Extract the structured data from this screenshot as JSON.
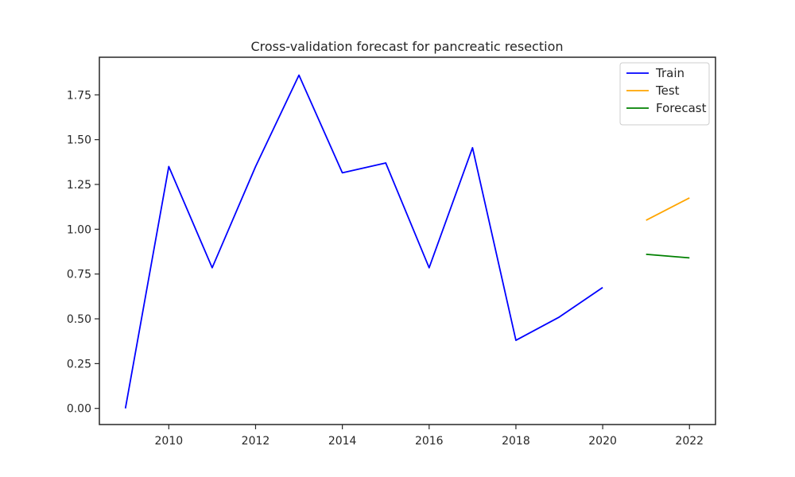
{
  "chart_data": {
    "type": "line",
    "title": "Cross-validation forecast for pancreatic resection",
    "xlabel": "",
    "ylabel": "",
    "xlim": [
      2008.4,
      2022.6
    ],
    "ylim": [
      -0.09,
      1.96
    ],
    "x_ticks": [
      2010,
      2012,
      2014,
      2016,
      2018,
      2020,
      2022
    ],
    "y_ticks": [
      0.0,
      0.25,
      0.5,
      0.75,
      1.0,
      1.25,
      1.5,
      1.75
    ],
    "x_tick_labels": [
      "2010",
      "2012",
      "2014",
      "2016",
      "2018",
      "2020",
      "2022"
    ],
    "y_tick_labels": [
      "0.00",
      "0.25",
      "0.50",
      "0.75",
      "1.00",
      "1.25",
      "1.50",
      "1.75"
    ],
    "grid": false,
    "legend_position": "top-right",
    "series": [
      {
        "name": "Train",
        "color": "#0000ff",
        "x": [
          2009,
          2010,
          2011,
          2012,
          2013,
          2014,
          2015,
          2016,
          2017,
          2018,
          2019,
          2020
        ],
        "y": [
          0.0,
          1.35,
          0.785,
          1.35,
          1.86,
          1.315,
          1.37,
          0.785,
          1.455,
          0.38,
          0.51,
          0.675
        ]
      },
      {
        "name": "Test",
        "color": "#ffa500",
        "x": [
          2021,
          2022
        ],
        "y": [
          1.05,
          1.175
        ]
      },
      {
        "name": "Forecast",
        "color": "#008000",
        "x": [
          2021,
          2022
        ],
        "y": [
          0.86,
          0.84
        ]
      }
    ]
  }
}
